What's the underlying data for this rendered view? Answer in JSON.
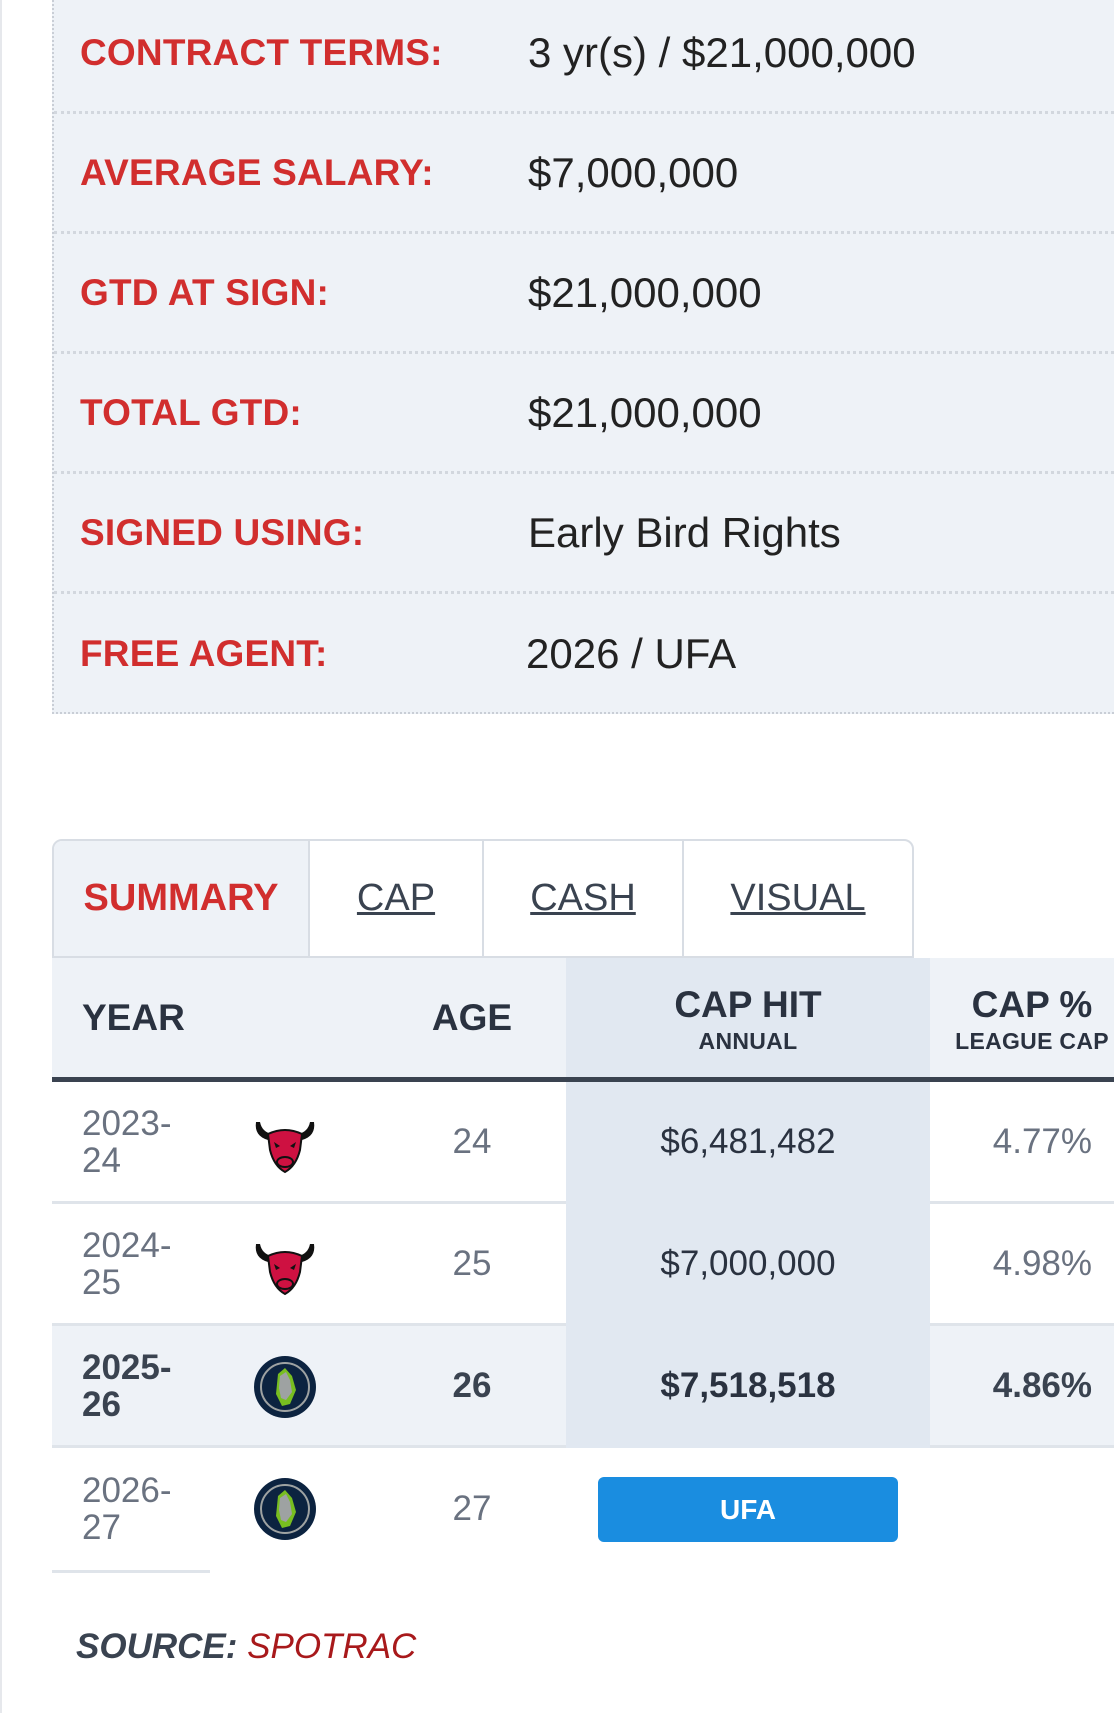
{
  "details": [
    {
      "label": "CONTRACT TERMS:",
      "value": "3 yr(s) / $21,000,000"
    },
    {
      "label": "AVERAGE SALARY:",
      "value": "$7,000,000"
    },
    {
      "label": "GTD AT SIGN:",
      "value": "$21,000,000"
    },
    {
      "label": "TOTAL GTD:",
      "value": "$21,000,000"
    },
    {
      "label": "SIGNED USING:",
      "value": "Early Bird Rights"
    },
    {
      "label": "FREE AGENT:",
      "value": "2026 / UFA"
    }
  ],
  "tabs": [
    "SUMMARY",
    "CAP",
    "CASH",
    "VISUAL"
  ],
  "table": {
    "headers": {
      "year": "YEAR",
      "age": "AGE",
      "cap_hit": "CAP HIT",
      "cap_hit_sub": "ANNUAL",
      "cap_pct": "CAP %",
      "cap_pct_sub": "LEAGUE CAP"
    },
    "rows": [
      {
        "year1": "2023-",
        "year2": "24",
        "team": "bulls-logo",
        "age": "24",
        "cap_hit": "$6,481,482",
        "cap_pct": "4.77%"
      },
      {
        "year1": "2024-",
        "year2": "25",
        "team": "bulls-logo",
        "age": "25",
        "cap_hit": "$7,000,000",
        "cap_pct": "4.98%"
      },
      {
        "year1": "2025-",
        "year2": "26",
        "team": "timberwolves-logo",
        "age": "26",
        "cap_hit": "$7,518,518",
        "cap_pct": "4.86%"
      },
      {
        "year1": "2026-",
        "year2": "27",
        "team": "timberwolves-logo",
        "age": "27",
        "status": "UFA"
      }
    ]
  },
  "source": {
    "label": "SOURCE:",
    "link": "SPOTRAC"
  },
  "colors": {
    "accent_red": "#d12e2e",
    "ufa_blue": "#1a8de0",
    "header_dark": "#3a4350"
  }
}
